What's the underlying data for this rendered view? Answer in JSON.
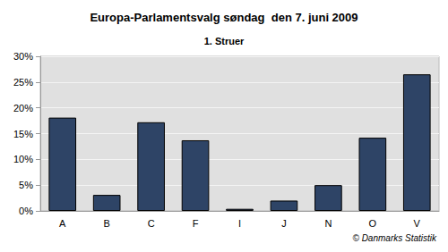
{
  "chart_data": {
    "type": "bar",
    "title": "Europa-Parlamentsvalg søndag  den 7. juni 2009",
    "subtitle": "1. Struer",
    "annotations": [
      "© Danmarks Statistik"
    ],
    "categories": [
      "A",
      "B",
      "C",
      "F",
      "I",
      "J",
      "N",
      "O",
      "V"
    ],
    "values": [
      18.1,
      3.1,
      17.2,
      13.7,
      0.4,
      2.0,
      5.0,
      14.2,
      26.5
    ],
    "color": "#2e4466",
    "ylim": [
      0,
      30
    ],
    "yticks": [
      {
        "value": 0,
        "label": "0%"
      },
      {
        "value": 5,
        "label": "5%"
      },
      {
        "value": 10,
        "label": "10%"
      },
      {
        "value": 15,
        "label": "15%"
      },
      {
        "value": 20,
        "label": "20%"
      },
      {
        "value": 25,
        "label": "25%"
      },
      {
        "value": 30,
        "label": "30%"
      }
    ],
    "grid": true
  }
}
